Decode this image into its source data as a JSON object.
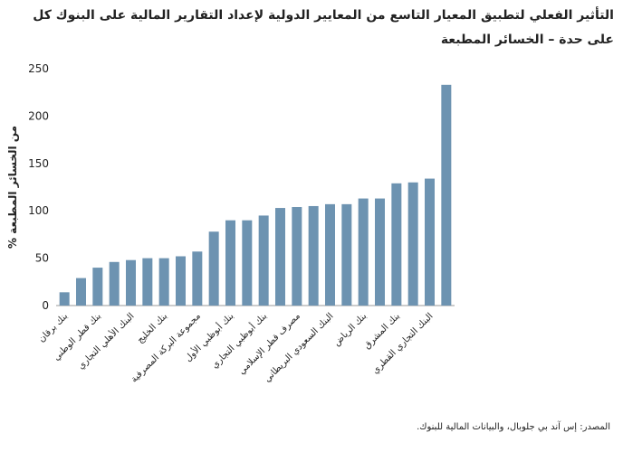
{
  "chart_data": {
    "type": "bar",
    "title": "التأثير الفعلي لتطبيق المعيار التاسع من المعايير الدولية لإعداد التقارير المالية على البنوك كل على حدة – الخسائر المطبعة",
    "y_label": "% من الخسائر المطبعة",
    "source": "المصدر: إس آند بي جلوبال، والبيانات المالية للبنوك.",
    "categories": [
      "بنك برقان",
      null,
      "بنك قطر الوطني",
      null,
      "البنك الأهلي التجاري",
      null,
      "بنك الخليج",
      null,
      "مجموعة البركة المصرفية",
      null,
      "بنك أبوظبي الأول",
      null,
      "بنك أبوظبي التجاري",
      null,
      "مصرف قطر الإسلامي",
      null,
      "البنك السعودي البريطاني",
      null,
      "بنك الرياض",
      null,
      "بنك المشرق",
      null,
      "البنك التجاري القطري",
      null
    ],
    "values": [
      14,
      29,
      40,
      46,
      48,
      50,
      50,
      52,
      57,
      78,
      90,
      90,
      95,
      103,
      104,
      105,
      107,
      107,
      113,
      113,
      129,
      130,
      134,
      233
    ],
    "color": "#6d93b1",
    "ylim": [
      0,
      250
    ],
    "yticks": [
      0,
      50,
      100,
      150,
      200,
      250
    ],
    "grid": false
  }
}
